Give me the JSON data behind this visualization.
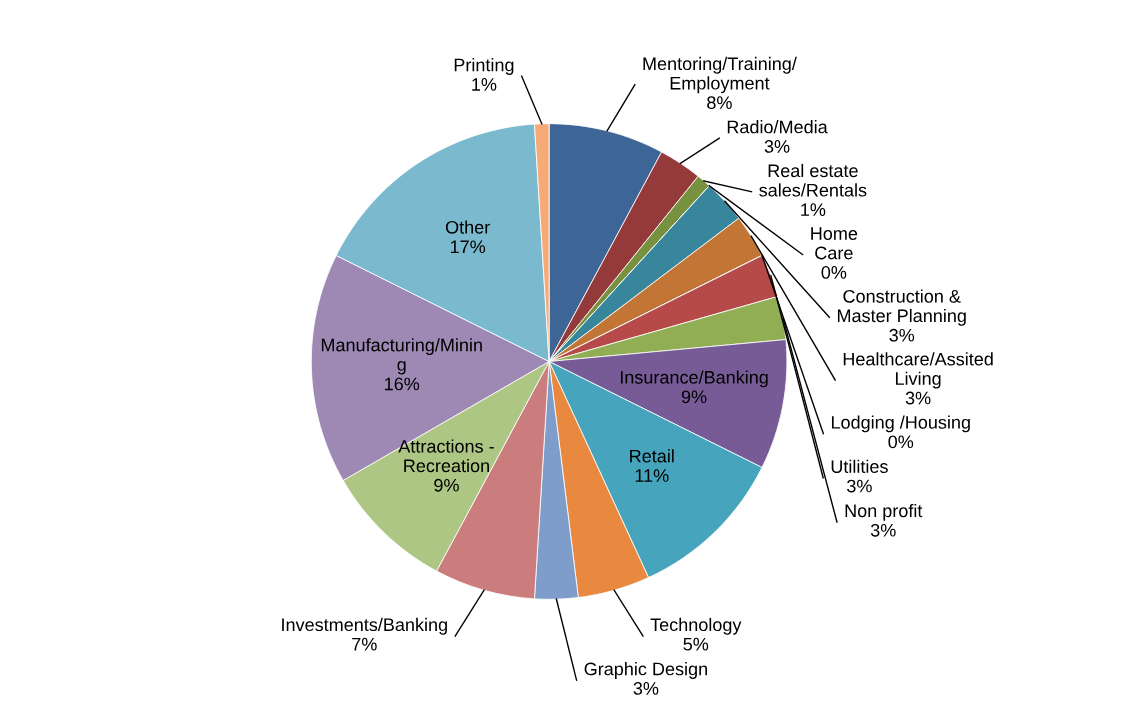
{
  "chart_data": {
    "type": "pie",
    "categories": [
      "Mentoring/Training/\nEmployment",
      "Radio/Media",
      "Real estate\nsales/Rentals",
      "Home\nCare",
      "Construction &\nMaster Planning",
      "Healthcare/Assited\nLiving",
      "Lodging /Housing",
      "Utilities",
      "Non profit",
      "Insurance/Banking",
      "Retail",
      "Technology",
      "Graphic Design",
      "Investments/Banking",
      "Attractions -\nRecreation",
      "Manufacturing/Minin\ng",
      "Other",
      "Printing"
    ],
    "values": [
      8,
      3,
      1,
      0,
      3,
      3,
      0,
      3,
      3,
      9,
      11,
      5,
      3,
      7,
      9,
      16,
      17,
      1
    ],
    "value_labels": [
      "8%",
      "3%",
      "1%",
      "0%",
      "3%",
      "3%",
      "0%",
      "3%",
      "3%",
      "9%",
      "11%",
      "5%",
      "3%",
      "7%",
      "9%",
      "16%",
      "17%",
      "1%"
    ],
    "colors": [
      "#3d6595",
      "#953a3a",
      "#77913f",
      "#5f4a7e",
      "#37869b",
      "#c27534",
      "#4a6fa0",
      "#b64a48",
      "#92ae55",
      "#775b96",
      "#46a5bc",
      "#e8893f",
      "#7f9dca",
      "#cb7c7c",
      "#aec683",
      "#9d89b3",
      "#7bbace",
      "#f6aa77"
    ],
    "legend": false
  }
}
